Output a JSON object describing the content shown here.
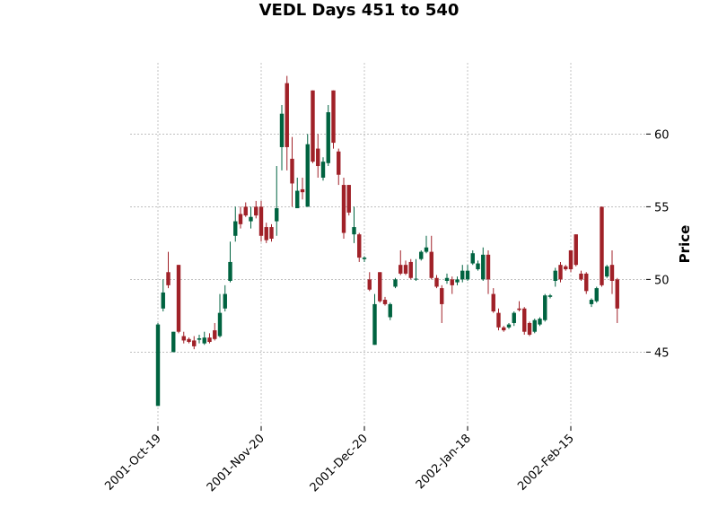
{
  "chart_data": {
    "type": "candlestick",
    "title": "VEDL Days 451 to 540",
    "y_label": "Price",
    "categories": [
      "2001-Oct-19",
      null,
      null,
      null,
      null,
      null,
      null,
      null,
      null,
      null,
      null,
      null,
      null,
      null,
      null,
      null,
      null,
      null,
      null,
      null,
      "2001-Nov-20",
      null,
      null,
      null,
      null,
      null,
      null,
      null,
      null,
      null,
      null,
      null,
      null,
      null,
      null,
      null,
      null,
      null,
      null,
      null,
      "2001-Dec-20",
      null,
      null,
      null,
      null,
      null,
      null,
      null,
      null,
      null,
      null,
      null,
      null,
      null,
      null,
      null,
      null,
      null,
      null,
      null,
      "2002-Jan-18",
      null,
      null,
      null,
      null,
      null,
      null,
      null,
      null,
      null,
      null,
      null,
      null,
      null,
      null,
      null,
      null,
      null,
      null,
      null,
      "2002-Feb-15",
      null,
      null,
      null,
      null,
      null,
      null,
      null,
      null,
      null
    ],
    "open": [
      41.3,
      48,
      50.5,
      45,
      51,
      46.1,
      45.9,
      45.8,
      45.85,
      45.6,
      46,
      46.5,
      46.1,
      48,
      49.9,
      53,
      54.5,
      55,
      54,
      55,
      55,
      53.6,
      53.6,
      54,
      59.1,
      63.5,
      58.3,
      54.9,
      56.2,
      55,
      63,
      59,
      57,
      58,
      63,
      58.8,
      56.5,
      56.5,
      53.1,
      53.1,
      51.4,
      50,
      45.5,
      50.5,
      48.6,
      47.4,
      49.5,
      51,
      51,
      51.2,
      50,
      51.4,
      51.9,
      51.9,
      50.1,
      49.4,
      49.9,
      50,
      49.8,
      50,
      50,
      51.1,
      50.7,
      50,
      51.7,
      49,
      47.7,
      46.7,
      46.7,
      47,
      48,
      48,
      47,
      46.4,
      46.9,
      47.2,
      48.8,
      49.9,
      51,
      50.9,
      52,
      53.1,
      50.4,
      50.4,
      48.3,
      48.5,
      55,
      50.2,
      51,
      50
    ],
    "high": [
      47,
      50,
      51.9,
      46.4,
      51,
      46.4,
      46,
      46.1,
      46.2,
      46.4,
      46.3,
      47,
      49,
      49.6,
      52.6,
      55,
      55,
      55.3,
      55,
      55.4,
      55.4,
      53.9,
      53.8,
      57.8,
      62,
      64,
      59.8,
      57,
      57,
      60,
      63,
      60,
      58.4,
      62,
      63,
      59,
      57,
      56.5,
      55,
      53.2,
      51.6,
      50.5,
      49,
      50.5,
      48.8,
      48.4,
      50.1,
      52,
      51.3,
      51.4,
      51.4,
      52,
      53,
      53,
      50.3,
      49.6,
      50.4,
      50.2,
      50.2,
      51,
      51,
      52,
      51.3,
      52.2,
      52,
      49.4,
      48,
      46.8,
      47,
      47.8,
      48.5,
      48.1,
      47.1,
      47.3,
      47.4,
      49,
      49,
      50.8,
      51.2,
      51,
      52,
      53.1,
      50.6,
      50.5,
      48.7,
      49.5,
      55,
      51,
      52,
      50.1
    ],
    "low": [
      41.3,
      47.8,
      49.4,
      45,
      46.3,
      45.6,
      45.6,
      45.2,
      45.6,
      45.5,
      45.6,
      45.8,
      46,
      47.8,
      49.8,
      52.6,
      53.5,
      54.3,
      53.5,
      54.2,
      52.6,
      52.5,
      52.6,
      53,
      57.5,
      57.5,
      55,
      54.9,
      55.5,
      55,
      58,
      57,
      56.8,
      57.8,
      59,
      56.5,
      52.8,
      54.4,
      52.5,
      51.2,
      51.2,
      49.2,
      45.5,
      48.4,
      48.2,
      47.2,
      49.4,
      50.3,
      50.3,
      50,
      49.9,
      51.3,
      51.8,
      50,
      49.4,
      47,
      49.7,
      49,
      49.6,
      49.8,
      49.9,
      51,
      50.6,
      49.9,
      49,
      47.7,
      46.5,
      46.4,
      46.6,
      46.8,
      47.8,
      46.2,
      46.1,
      46.3,
      46.8,
      47.1,
      48.7,
      49.5,
      49.8,
      50.6,
      50.5,
      50.9,
      49.9,
      49,
      48.1,
      48.4,
      49.5,
      50.1,
      49,
      47
    ],
    "close": [
      46.9,
      49.1,
      49.6,
      46.4,
      46.4,
      45.8,
      45.7,
      45.4,
      45.95,
      46,
      45.7,
      45.9,
      47.7,
      49,
      51.2,
      54,
      53.8,
      54.4,
      54.3,
      54.4,
      53,
      52.7,
      52.8,
      54.9,
      61.4,
      59.1,
      56.6,
      56.1,
      56,
      59.3,
      58.1,
      57.8,
      58.1,
      61.5,
      59.4,
      57.2,
      53.2,
      54.6,
      53.6,
      51.5,
      51.5,
      49.3,
      48.3,
      48.5,
      48.3,
      48.3,
      50,
      50.4,
      50.4,
      50.1,
      50.05,
      51.9,
      52.2,
      50.1,
      49.5,
      48.3,
      50.1,
      49.6,
      50,
      50.6,
      50.6,
      51.8,
      51.1,
      51.7,
      50,
      47.8,
      46.7,
      46.5,
      46.9,
      47.7,
      47.9,
      46.4,
      46.2,
      47.2,
      47.3,
      48.9,
      48.9,
      50.6,
      50,
      50.7,
      50.7,
      51,
      50,
      49.2,
      48.6,
      49.4,
      49.6,
      50.9,
      49.9,
      48
    ],
    "up_color": "#006340",
    "down_color": "#a02128",
    "ylim": [
      39.9,
      64.9
    ],
    "yticks": [
      45,
      50,
      55,
      60
    ],
    "grid": true
  }
}
